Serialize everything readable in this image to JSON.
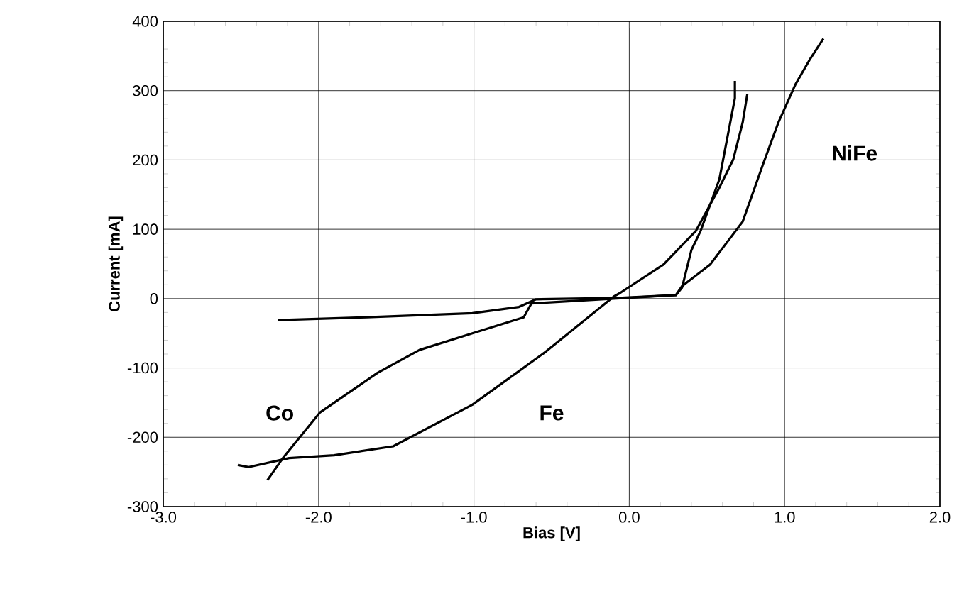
{
  "chart_data": {
    "type": "line",
    "xlabel": "Bias [V]",
    "ylabel": "Current [mA]",
    "xlim": [
      -3,
      2
    ],
    "ylim": [
      -300,
      400
    ],
    "xticks": [
      {
        "value": -3,
        "label": "-3.0"
      },
      {
        "value": -2,
        "label": "-2.0"
      },
      {
        "value": -1,
        "label": "-1.0"
      },
      {
        "value": 0,
        "label": "0.0"
      },
      {
        "value": 1,
        "label": "1.0"
      },
      {
        "value": 2,
        "label": "2.0"
      }
    ],
    "yticks": [
      -300,
      -200,
      -100,
      0,
      100,
      200,
      300,
      400
    ],
    "grid": true,
    "legend": false,
    "marker": "none",
    "line_style": "solid",
    "series": [
      {
        "name": "Co",
        "color": "#000000",
        "x": [
          -2.33,
          -2.23,
          -1.99,
          -1.62,
          -1.35,
          -1.01,
          -0.68,
          -0.63,
          -0.1,
          0.3,
          0.34,
          0.4,
          0.46,
          0.58,
          0.68,
          0.68
        ],
        "values": [
          -262,
          -230,
          -164,
          -107,
          -74,
          -50,
          -27,
          -7,
          0,
          5,
          16,
          70,
          98,
          172,
          289,
          314
        ]
      },
      {
        "name": "Fe",
        "color": "#000000",
        "x": [
          -2.52,
          -2.45,
          -2.19,
          -1.9,
          -1.52,
          -1.01,
          -0.54,
          -0.1,
          -0.06,
          0.22,
          0.43,
          0.58,
          0.67,
          0.73,
          0.76
        ],
        "values": [
          -240,
          -243,
          -230,
          -226,
          -213,
          -153,
          -77,
          3,
          8,
          49,
          98,
          160,
          201,
          254,
          295
        ]
      },
      {
        "name": "NiFe",
        "color": "#000000",
        "x": [
          -2.26,
          -1.69,
          -1.01,
          -0.71,
          -0.6,
          -0.07,
          0.3,
          0.34,
          0.52,
          0.73,
          0.86,
          0.96,
          1.07,
          1.16,
          1.25
        ],
        "values": [
          -31,
          -27,
          -21,
          -12,
          -1,
          1,
          5,
          18,
          49,
          111,
          193,
          254,
          309,
          344,
          375
        ]
      }
    ]
  }
}
